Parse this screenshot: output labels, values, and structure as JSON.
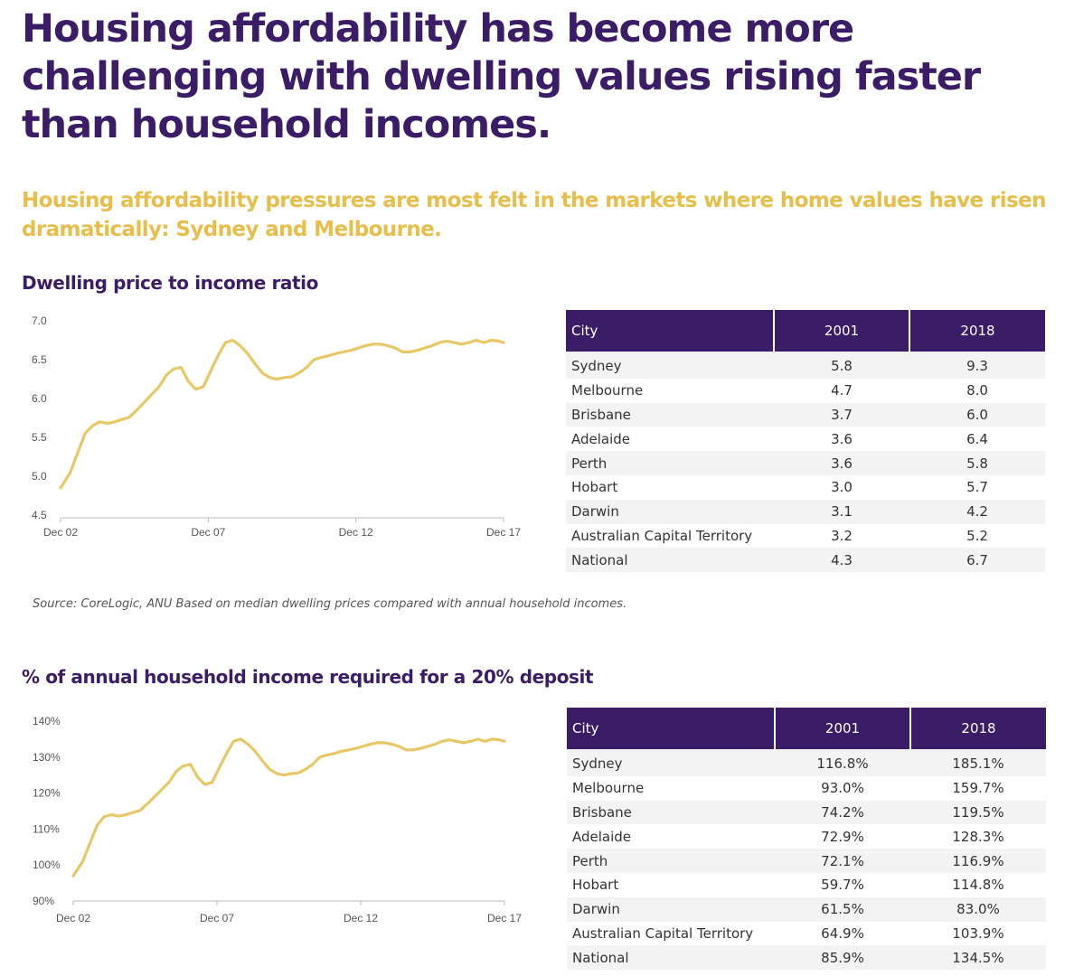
{
  "headline": "Housing affordability has become more challenging with dwelling values rising faster than household incomes.",
  "subheadline": "Housing affordability pressures are most felt in the markets where home values have risen dramatically: Sydney and Melbourne.",
  "colors": {
    "line": "#e8c866",
    "primary": "#3b1c66",
    "accent": "#e8be4b"
  },
  "source": "Source: CoreLogic, ANU Based on median dwelling prices compared with annual household incomes.",
  "table1": {
    "headers": [
      "City",
      "2001",
      "2018"
    ],
    "rows": [
      [
        "Sydney",
        "5.8",
        "9.3"
      ],
      [
        "Melbourne",
        "4.7",
        "8.0"
      ],
      [
        "Brisbane",
        "3.7",
        "6.0"
      ],
      [
        "Adelaide",
        "3.6",
        "6.4"
      ],
      [
        "Perth",
        "3.6",
        "5.8"
      ],
      [
        "Hobart",
        "3.0",
        "5.7"
      ],
      [
        "Darwin",
        "3.1",
        "4.2"
      ],
      [
        "Australian Capital Territory",
        "3.2",
        "5.2"
      ],
      [
        "National",
        "4.3",
        "6.7"
      ]
    ]
  },
  "table2": {
    "headers": [
      "City",
      "2001",
      "2018"
    ],
    "rows": [
      [
        "Sydney",
        "116.8%",
        "185.1%"
      ],
      [
        "Melbourne",
        "93.0%",
        "159.7%"
      ],
      [
        "Brisbane",
        "74.2%",
        "119.5%"
      ],
      [
        "Adelaide",
        "72.9%",
        "128.3%"
      ],
      [
        "Perth",
        "72.1%",
        "116.9%"
      ],
      [
        "Hobart",
        "59.7%",
        "114.8%"
      ],
      [
        "Darwin",
        "61.5%",
        "83.0%"
      ],
      [
        "Australian Capital Territory",
        "64.9%",
        "103.9%"
      ],
      [
        "National",
        "85.9%",
        "134.5%"
      ]
    ]
  },
  "chart_data": [
    {
      "type": "line",
      "title": "Dwelling price to income ratio",
      "xlabel": "",
      "ylabel": "",
      "x_ticks": [
        "Dec 02",
        "Dec 07",
        "Dec 12",
        "Dec 17"
      ],
      "y_ticks": [
        "4.5",
        "5.0",
        "5.5",
        "6.0",
        "6.5",
        "7.0"
      ],
      "xlim": [
        2002.92,
        2017.92
      ],
      "ylim": [
        4.5,
        7.0
      ],
      "legend": "none",
      "series": [
        {
          "name": "Dwelling price to income ratio",
          "x": [
            2002.92,
            2003.25,
            2003.5,
            2003.75,
            2004.0,
            2004.25,
            2004.5,
            2004.75,
            2005.0,
            2005.25,
            2005.5,
            2005.75,
            2006.0,
            2006.25,
            2006.5,
            2006.75,
            2007.0,
            2007.25,
            2007.5,
            2007.75,
            2008.0,
            2008.25,
            2008.5,
            2008.75,
            2009.0,
            2009.25,
            2009.5,
            2009.75,
            2010.0,
            2010.25,
            2010.5,
            2010.75,
            2011.0,
            2011.25,
            2011.5,
            2011.75,
            2012.0,
            2012.25,
            2012.5,
            2012.75,
            2013.0,
            2013.25,
            2013.5,
            2013.75,
            2014.0,
            2014.25,
            2014.5,
            2014.75,
            2015.0,
            2015.25,
            2015.5,
            2015.75,
            2016.0,
            2016.25,
            2016.5,
            2016.75,
            2017.0,
            2017.25,
            2017.5,
            2017.75,
            2017.92
          ],
          "values": [
            4.85,
            5.05,
            5.3,
            5.55,
            5.65,
            5.7,
            5.68,
            5.7,
            5.73,
            5.76,
            5.85,
            5.95,
            6.05,
            6.15,
            6.3,
            6.38,
            6.4,
            6.22,
            6.12,
            6.15,
            6.35,
            6.55,
            6.72,
            6.75,
            6.68,
            6.58,
            6.45,
            6.33,
            6.27,
            6.25,
            6.27,
            6.28,
            6.33,
            6.4,
            6.5,
            6.53,
            6.55,
            6.58,
            6.6,
            6.62,
            6.65,
            6.68,
            6.7,
            6.7,
            6.68,
            6.65,
            6.6,
            6.6,
            6.62,
            6.65,
            6.68,
            6.72,
            6.74,
            6.72,
            6.7,
            6.72,
            6.75,
            6.72,
            6.75,
            6.74,
            6.72
          ]
        }
      ]
    },
    {
      "type": "line",
      "title": "% of annual household income required for a 20% deposit",
      "xlabel": "",
      "ylabel": "",
      "x_ticks": [
        "Dec 02",
        "Dec 07",
        "Dec 12",
        "Dec 17"
      ],
      "y_ticks": [
        "90%",
        "100%",
        "110%",
        "120%",
        "130%",
        "140%"
      ],
      "xlim": [
        2002.92,
        2017.92
      ],
      "ylim": [
        90,
        140
      ],
      "legend": "none",
      "series": [
        {
          "name": "% of annual household income required for a 20% deposit",
          "x": [
            2002.92,
            2003.25,
            2003.5,
            2003.75,
            2004.0,
            2004.25,
            2004.5,
            2004.75,
            2005.0,
            2005.25,
            2005.5,
            2005.75,
            2006.0,
            2006.25,
            2006.5,
            2006.75,
            2007.0,
            2007.25,
            2007.5,
            2007.75,
            2008.0,
            2008.25,
            2008.5,
            2008.75,
            2009.0,
            2009.25,
            2009.5,
            2009.75,
            2010.0,
            2010.25,
            2010.5,
            2010.75,
            2011.0,
            2011.25,
            2011.5,
            2011.75,
            2012.0,
            2012.25,
            2012.5,
            2012.75,
            2013.0,
            2013.25,
            2013.5,
            2013.75,
            2014.0,
            2014.25,
            2014.5,
            2014.75,
            2015.0,
            2015.25,
            2015.5,
            2015.75,
            2016.0,
            2016.25,
            2016.5,
            2016.75,
            2017.0,
            2017.25,
            2017.5,
            2017.75,
            2017.92
          ],
          "values": [
            97.0,
            101.0,
            106.0,
            111.0,
            113.5,
            114.0,
            113.6,
            114.0,
            114.6,
            115.2,
            117.0,
            119.0,
            121.0,
            123.0,
            126.0,
            127.6,
            128.0,
            124.4,
            122.4,
            123.0,
            127.0,
            131.0,
            134.4,
            135.0,
            133.6,
            131.6,
            129.0,
            126.6,
            125.4,
            125.0,
            125.4,
            125.6,
            126.6,
            128.0,
            130.0,
            130.6,
            131.0,
            131.6,
            132.0,
            132.4,
            133.0,
            133.6,
            134.0,
            134.0,
            133.6,
            133.0,
            132.0,
            132.0,
            132.4,
            133.0,
            133.6,
            134.4,
            134.8,
            134.4,
            134.0,
            134.4,
            135.0,
            134.4,
            135.0,
            134.8,
            134.4
          ]
        }
      ]
    }
  ]
}
